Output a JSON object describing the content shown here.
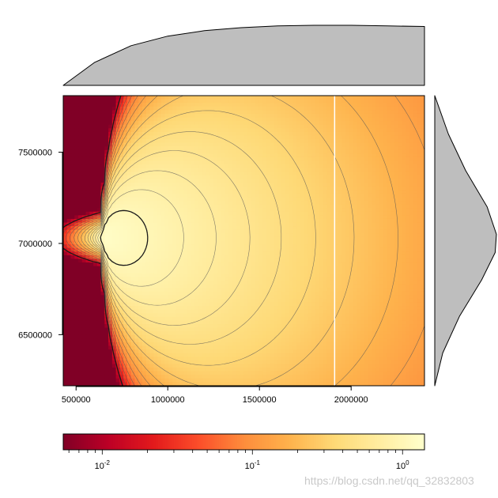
{
  "chart_data": {
    "type": "heatmap",
    "title": "",
    "xlabel": "",
    "ylabel": "",
    "x_ticks": [
      500000,
      1000000,
      1500000,
      2000000
    ],
    "y_ticks": [
      6500000,
      7000000,
      7500000
    ],
    "xlim": [
      430000,
      2400000
    ],
    "ylim": [
      6220000,
      7810000
    ],
    "color_scale": {
      "scale": "log",
      "range": [
        0.0055,
        1.4
      ],
      "tick_labels": [
        "10",
        "10",
        "10"
      ],
      "tick_exponents": [
        "-2",
        "-1",
        "0"
      ],
      "tick_values": [
        0.01,
        0.1,
        1
      ],
      "colormap": [
        "#800026",
        "#bd0026",
        "#e31a1c",
        "#fc4e2a",
        "#fd8d3c",
        "#feb24c",
        "#fed976",
        "#ffeda0",
        "#ffffcc"
      ]
    },
    "vertical_line": {
      "x": 1910000,
      "color": "#ffffff"
    },
    "peak": {
      "x": 650000,
      "y": 7030000,
      "value": 1.3
    },
    "contour_levels": [
      0.015,
      0.025,
      0.04,
      0.06,
      0.09,
      0.13,
      0.18,
      0.25,
      0.33,
      0.42,
      0.52,
      0.65,
      0.8,
      1.0
    ],
    "marginal_top": {
      "type": "area",
      "x": [
        430000,
        600000,
        800000,
        1000000,
        1200000,
        1400000,
        1600000,
        1800000,
        2000000,
        2200000,
        2400000
      ],
      "values": [
        0.0,
        0.38,
        0.66,
        0.82,
        0.91,
        0.96,
        0.99,
        1.0,
        1.0,
        0.99,
        0.98
      ],
      "fill": "#bebebe"
    },
    "marginal_right": {
      "type": "area",
      "y": [
        6220000,
        6400000,
        6600000,
        6800000,
        6950000,
        7050000,
        7200000,
        7400000,
        7600000,
        7810000
      ],
      "values": [
        0.0,
        0.13,
        0.4,
        0.76,
        0.98,
        1.0,
        0.85,
        0.5,
        0.22,
        0.0
      ],
      "fill": "#bebebe"
    }
  },
  "watermark": "https://blog.csdn.net/qq_32832803"
}
